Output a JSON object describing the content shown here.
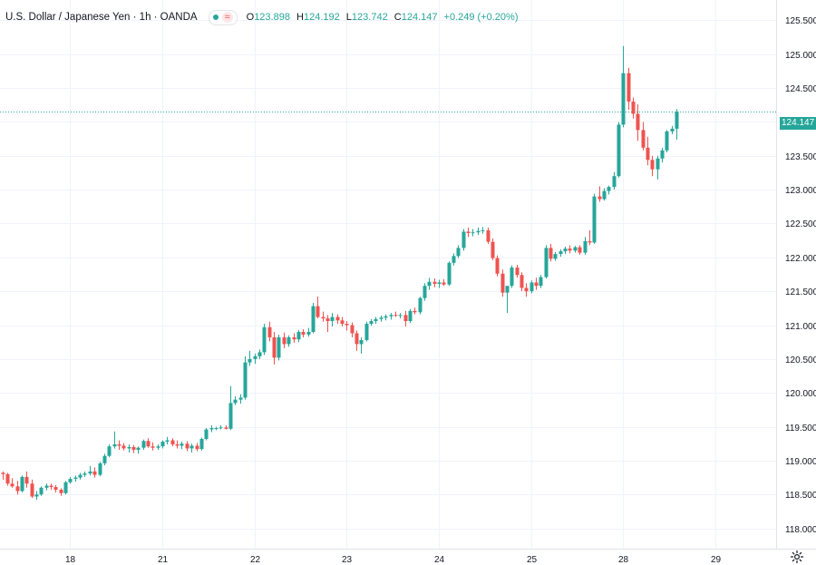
{
  "header": {
    "title": "U.S. Dollar / Japanese Yen · 1h · OANDA",
    "status_icon": "dot-icon",
    "indicator_icon": "wave-icon",
    "indicator_glyph": "≈",
    "ohlc": {
      "open_label": "O",
      "open": "123.898",
      "high_label": "H",
      "high": "124.192",
      "low_label": "L",
      "low": "123.742",
      "close_label": "C",
      "close": "124.147",
      "change": "+0.249 (+0.20%)"
    }
  },
  "price_tag": "124.147",
  "colors": {
    "up": "#26a69a",
    "down": "#ef5350",
    "grid": "#f0f3fa",
    "axis_text": "#131722",
    "last_price_line": "#26a69a"
  },
  "chart_data": {
    "type": "candlestick",
    "ylim": [
      117.7,
      125.8
    ],
    "y_ticks": [
      "118.000",
      "118.500",
      "119.000",
      "119.500",
      "120.000",
      "120.500",
      "121.000",
      "121.500",
      "122.000",
      "122.500",
      "123.000",
      "123.500",
      "124.000",
      "124.500",
      "125.000",
      "125.500"
    ],
    "x_ticks": [
      {
        "label": "18",
        "bar": 14
      },
      {
        "label": "21",
        "bar": 33
      },
      {
        "label": "22",
        "bar": 52
      },
      {
        "label": "23",
        "bar": 71
      },
      {
        "label": "24",
        "bar": 90
      },
      {
        "label": "25",
        "bar": 109
      },
      {
        "label": "28",
        "bar": 128
      },
      {
        "label": "29",
        "bar": 147
      }
    ],
    "last_price": 124.147,
    "bars": [
      [
        118.82,
        118.84,
        118.72,
        118.8
      ],
      [
        118.8,
        118.82,
        118.63,
        118.66
      ],
      [
        118.66,
        118.74,
        118.6,
        118.62
      ],
      [
        118.62,
        118.7,
        118.5,
        118.55
      ],
      [
        118.55,
        118.78,
        118.53,
        118.76
      ],
      [
        118.76,
        118.84,
        118.6,
        118.66
      ],
      [
        118.66,
        118.72,
        118.45,
        118.47
      ],
      [
        118.47,
        118.55,
        118.42,
        118.5
      ],
      [
        118.5,
        118.62,
        118.48,
        118.6
      ],
      [
        118.6,
        118.66,
        118.56,
        118.63
      ],
      [
        118.63,
        118.66,
        118.57,
        118.61
      ],
      [
        118.61,
        118.64,
        118.53,
        118.57
      ],
      [
        118.57,
        118.59,
        118.48,
        118.52
      ],
      [
        118.52,
        118.7,
        118.5,
        118.68
      ],
      [
        118.68,
        118.76,
        118.66,
        118.73
      ],
      [
        118.73,
        118.78,
        118.69,
        118.75
      ],
      [
        118.75,
        118.82,
        118.72,
        118.79
      ],
      [
        118.79,
        118.84,
        118.76,
        118.81
      ],
      [
        118.81,
        118.92,
        118.78,
        118.84
      ],
      [
        118.84,
        118.9,
        118.75,
        118.79
      ],
      [
        118.79,
        118.98,
        118.77,
        118.96
      ],
      [
        118.96,
        119.1,
        118.93,
        119.07
      ],
      [
        119.07,
        119.24,
        119.05,
        119.21
      ],
      [
        119.21,
        119.43,
        119.18,
        119.24
      ],
      [
        119.24,
        119.3,
        119.16,
        119.22
      ],
      [
        119.22,
        119.26,
        119.15,
        119.18
      ],
      [
        119.18,
        119.24,
        119.12,
        119.2
      ],
      [
        119.2,
        119.23,
        119.11,
        119.16
      ],
      [
        119.16,
        119.21,
        119.1,
        119.19
      ],
      [
        119.19,
        119.31,
        119.16,
        119.29
      ],
      [
        119.29,
        119.33,
        119.19,
        119.21
      ],
      [
        119.21,
        119.27,
        119.15,
        119.19
      ],
      [
        119.19,
        119.24,
        119.16,
        119.21
      ],
      [
        119.21,
        119.3,
        119.18,
        119.28
      ],
      [
        119.28,
        119.35,
        119.24,
        119.3
      ],
      [
        119.3,
        119.33,
        119.21,
        119.24
      ],
      [
        119.24,
        119.3,
        119.18,
        119.22
      ],
      [
        119.22,
        119.28,
        119.17,
        119.25
      ],
      [
        119.25,
        119.29,
        119.14,
        119.18
      ],
      [
        119.18,
        119.25,
        119.12,
        119.22
      ],
      [
        119.22,
        119.26,
        119.14,
        119.17
      ],
      [
        119.17,
        119.34,
        119.15,
        119.32
      ],
      [
        119.32,
        119.48,
        119.3,
        119.46
      ],
      [
        119.46,
        119.52,
        119.42,
        119.48
      ],
      [
        119.48,
        119.5,
        119.45,
        119.48
      ],
      [
        119.48,
        119.52,
        119.46,
        119.49
      ],
      [
        119.49,
        119.52,
        119.46,
        119.47
      ],
      [
        119.47,
        120.1,
        119.45,
        119.85
      ],
      [
        119.85,
        119.95,
        119.82,
        119.9
      ],
      [
        119.9,
        119.98,
        119.84,
        119.93
      ],
      [
        119.93,
        120.54,
        119.9,
        120.45
      ],
      [
        120.45,
        120.62,
        120.4,
        120.5
      ],
      [
        120.5,
        120.58,
        120.43,
        120.54
      ],
      [
        120.54,
        120.64,
        120.5,
        120.6
      ],
      [
        120.6,
        121.02,
        120.56,
        120.97
      ],
      [
        120.97,
        121.05,
        120.76,
        120.82
      ],
      [
        120.82,
        120.9,
        120.42,
        120.52
      ],
      [
        120.52,
        120.86,
        120.48,
        120.82
      ],
      [
        120.82,
        120.89,
        120.66,
        120.72
      ],
      [
        120.72,
        120.85,
        120.68,
        120.82
      ],
      [
        120.82,
        120.88,
        120.74,
        120.79
      ],
      [
        120.79,
        120.93,
        120.75,
        120.9
      ],
      [
        120.9,
        120.94,
        120.82,
        120.86
      ],
      [
        120.86,
        120.96,
        120.83,
        120.9
      ],
      [
        120.9,
        121.33,
        120.88,
        121.28
      ],
      [
        121.28,
        121.42,
        121.1,
        121.12
      ],
      [
        121.12,
        121.2,
        121.05,
        121.1
      ],
      [
        121.1,
        121.15,
        120.9,
        121.06
      ],
      [
        121.06,
        121.18,
        120.98,
        121.12
      ],
      [
        121.12,
        121.16,
        121.02,
        121.07
      ],
      [
        121.07,
        121.12,
        120.98,
        121.02
      ],
      [
        121.02,
        121.06,
        120.92,
        121.0
      ],
      [
        121.0,
        121.04,
        120.82,
        120.88
      ],
      [
        120.88,
        120.92,
        120.62,
        120.72
      ],
      [
        120.72,
        120.82,
        120.58,
        120.78
      ],
      [
        120.78,
        121.05,
        120.76,
        121.02
      ],
      [
        121.02,
        121.09,
        120.99,
        121.06
      ],
      [
        121.06,
        121.12,
        121.02,
        121.09
      ],
      [
        121.09,
        121.14,
        121.05,
        121.11
      ],
      [
        121.11,
        121.16,
        121.07,
        121.13
      ],
      [
        121.13,
        121.18,
        121.08,
        121.15
      ],
      [
        121.15,
        121.2,
        121.12,
        121.14
      ],
      [
        121.14,
        121.18,
        121.1,
        121.15
      ],
      [
        121.15,
        121.21,
        120.98,
        121.06
      ],
      [
        121.06,
        121.24,
        121.03,
        121.21
      ],
      [
        121.21,
        121.26,
        121.16,
        121.19
      ],
      [
        121.19,
        121.42,
        121.16,
        121.4
      ],
      [
        121.4,
        121.62,
        121.36,
        121.58
      ],
      [
        121.58,
        121.7,
        121.52,
        121.64
      ],
      [
        121.64,
        121.69,
        121.56,
        121.61
      ],
      [
        121.61,
        121.67,
        121.55,
        121.63
      ],
      [
        121.63,
        121.68,
        121.58,
        121.6
      ],
      [
        121.6,
        121.94,
        121.58,
        121.92
      ],
      [
        121.92,
        122.06,
        121.88,
        122.02
      ],
      [
        122.02,
        122.18,
        121.99,
        122.14
      ],
      [
        122.14,
        122.42,
        122.1,
        122.38
      ],
      [
        122.38,
        122.44,
        122.3,
        122.36
      ],
      [
        122.36,
        122.42,
        122.31,
        122.37
      ],
      [
        122.37,
        122.44,
        122.33,
        122.39
      ],
      [
        122.39,
        122.45,
        122.35,
        122.4
      ],
      [
        122.4,
        122.44,
        122.2,
        122.23
      ],
      [
        122.23,
        122.28,
        121.96,
        121.99
      ],
      [
        121.99,
        122.03,
        121.72,
        121.76
      ],
      [
        121.76,
        121.82,
        121.42,
        121.48
      ],
      [
        121.48,
        121.55,
        121.18,
        121.58
      ],
      [
        121.58,
        121.88,
        121.55,
        121.85
      ],
      [
        121.85,
        121.89,
        121.7,
        121.74
      ],
      [
        121.74,
        121.78,
        121.5,
        121.55
      ],
      [
        121.55,
        121.62,
        121.42,
        121.5
      ],
      [
        121.5,
        121.66,
        121.47,
        121.63
      ],
      [
        121.63,
        121.7,
        121.52,
        121.58
      ],
      [
        121.58,
        121.74,
        121.55,
        121.71
      ],
      [
        121.71,
        122.18,
        121.69,
        122.14
      ],
      [
        122.14,
        122.2,
        121.94,
        121.98
      ],
      [
        121.98,
        122.08,
        121.95,
        122.05
      ],
      [
        122.05,
        122.12,
        122.01,
        122.09
      ],
      [
        122.09,
        122.16,
        122.05,
        122.13
      ],
      [
        122.13,
        122.18,
        122.06,
        122.1
      ],
      [
        122.1,
        122.17,
        122.07,
        122.15
      ],
      [
        122.15,
        122.18,
        122.04,
        122.07
      ],
      [
        122.07,
        122.3,
        122.04,
        122.24
      ],
      [
        122.24,
        122.4,
        122.18,
        122.22
      ],
      [
        122.22,
        122.94,
        122.2,
        122.9
      ],
      [
        122.9,
        123.05,
        122.82,
        122.86
      ],
      [
        122.86,
        123.02,
        122.84,
        122.98
      ],
      [
        122.98,
        123.06,
        122.93,
        123.04
      ],
      [
        123.04,
        123.26,
        123.0,
        123.2
      ],
      [
        123.2,
        124.0,
        123.18,
        123.96
      ],
      [
        123.96,
        125.12,
        123.92,
        124.72
      ],
      [
        124.72,
        124.8,
        124.18,
        124.3
      ],
      [
        124.3,
        124.36,
        124.05,
        124.12
      ],
      [
        124.12,
        124.26,
        123.72,
        123.88
      ],
      [
        123.88,
        124.0,
        123.58,
        123.62
      ],
      [
        123.62,
        123.78,
        123.36,
        123.44
      ],
      [
        123.44,
        123.5,
        123.2,
        123.3
      ],
      [
        123.3,
        123.5,
        123.15,
        123.46
      ],
      [
        123.46,
        123.62,
        123.4,
        123.58
      ],
      [
        123.58,
        123.88,
        123.55,
        123.86
      ],
      [
        123.86,
        123.94,
        123.82,
        123.9
      ],
      [
        123.9,
        124.19,
        123.74,
        124.15
      ]
    ]
  }
}
